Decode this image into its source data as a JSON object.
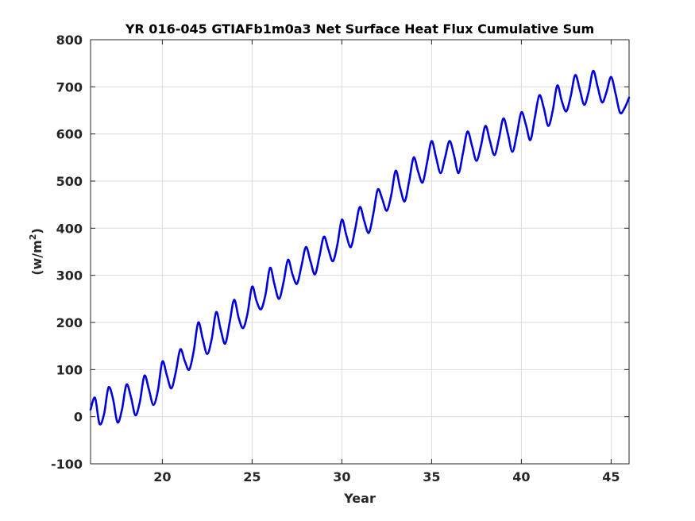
{
  "chart_data": {
    "type": "line",
    "title": "YR 016-045 GTIAFb1m0a3 Net Surface Heat Flux  Cumulative Sum",
    "xlabel": "Year",
    "ylabel_base": "(w/m",
    "ylabel_sup": "2",
    "ylabel_close": ")",
    "xlim": [
      16,
      46
    ],
    "ylim": [
      -100,
      800
    ],
    "xticks": [
      20,
      25,
      30,
      35,
      40,
      45
    ],
    "yticks": [
      -100,
      0,
      100,
      200,
      300,
      400,
      500,
      600,
      700,
      800
    ],
    "grid": true,
    "colors": {
      "line": "#0000dd",
      "grid": "#dcdcdc",
      "axis": "#262626"
    },
    "series": [
      {
        "x": [
          16.0,
          16.25,
          16.5,
          16.75,
          17.0,
          17.25,
          17.5,
          17.75,
          18.0,
          18.25,
          18.5,
          18.75,
          19.0,
          19.25,
          19.5,
          19.75,
          20.0,
          20.25,
          20.5,
          20.75,
          21.0,
          21.25,
          21.5,
          21.75,
          22.0,
          22.25,
          22.5,
          22.75,
          23.0,
          23.25,
          23.5,
          23.75,
          24.0,
          24.25,
          24.5,
          24.75,
          25.0,
          25.25,
          25.5,
          25.75,
          26.0,
          26.25,
          26.5,
          26.75,
          27.0,
          27.25,
          27.5,
          27.75,
          28.0,
          28.25,
          28.5,
          28.75,
          29.0,
          29.25,
          29.5,
          29.75,
          30.0,
          30.25,
          30.5,
          30.75,
          31.0,
          31.25,
          31.5,
          31.75,
          32.0,
          32.25,
          32.5,
          32.75,
          33.0,
          33.25,
          33.5,
          33.75,
          34.0,
          34.25,
          34.5,
          34.75,
          35.0,
          35.25,
          35.5,
          35.75,
          36.0,
          36.25,
          36.5,
          36.75,
          37.0,
          37.25,
          37.5,
          37.75,
          38.0,
          38.25,
          38.5,
          38.75,
          39.0,
          39.25,
          39.5,
          39.75,
          40.0,
          40.25,
          40.5,
          40.75,
          41.0,
          41.25,
          41.5,
          41.75,
          42.0,
          42.25,
          42.5,
          42.75,
          43.0,
          43.25,
          43.5,
          43.75,
          44.0,
          44.25,
          44.5,
          44.75,
          45.0,
          45.25,
          45.5,
          45.75,
          46.0
        ],
        "values": [
          15,
          40,
          -15,
          5,
          62,
          38,
          -12,
          15,
          68,
          42,
          3,
          32,
          87,
          58,
          25,
          55,
          117,
          88,
          60,
          95,
          143,
          118,
          100,
          140,
          200,
          165,
          133,
          165,
          222,
          185,
          155,
          200,
          248,
          210,
          188,
          220,
          276,
          245,
          228,
          260,
          316,
          280,
          250,
          285,
          333,
          302,
          282,
          320,
          360,
          330,
          302,
          340,
          382,
          355,
          330,
          365,
          418,
          385,
          360,
          400,
          445,
          415,
          390,
          430,
          482,
          462,
          437,
          470,
          522,
          485,
          457,
          500,
          550,
          520,
          497,
          540,
          585,
          550,
          517,
          550,
          585,
          555,
          517,
          560,
          605,
          575,
          543,
          575,
          617,
          585,
          555,
          590,
          633,
          600,
          562,
          600,
          646,
          620,
          587,
          635,
          682,
          655,
          617,
          650,
          703,
          670,
          648,
          680,
          725,
          695,
          662,
          690,
          734,
          700,
          667,
          690,
          721,
          685,
          645,
          655,
          677
        ]
      }
    ]
  }
}
